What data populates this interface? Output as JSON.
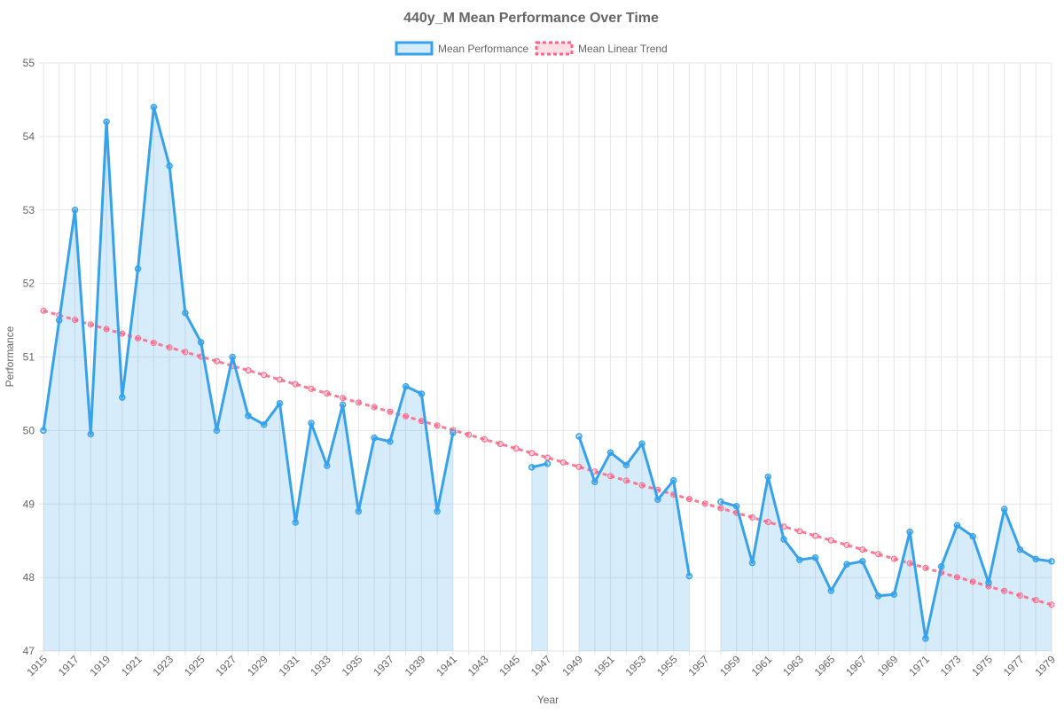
{
  "chart_data": {
    "type": "line",
    "title": "440y_M Mean Performance Over Time",
    "xlabel": "Year",
    "ylabel": "Performance",
    "ylim": [
      47,
      55
    ],
    "xlim": [
      1915,
      1979
    ],
    "y_ticks": [
      47,
      48,
      49,
      50,
      51,
      52,
      53,
      54,
      55
    ],
    "x_tick_labels": [
      "1915",
      "1917",
      "1919",
      "1921",
      "1923",
      "1925",
      "1927",
      "1929",
      "1931",
      "1933",
      "1935",
      "1937",
      "1939",
      "1941",
      "1943",
      "1945",
      "1947",
      "1949",
      "1951",
      "1953",
      "1955",
      "1957",
      "1959",
      "1961",
      "1963",
      "1965",
      "1967",
      "1969",
      "1971",
      "1973",
      "1975",
      "1977",
      "1979"
    ],
    "grid": true,
    "legend_position": "top-center",
    "x": [
      1915,
      1916,
      1917,
      1918,
      1919,
      1920,
      1921,
      1922,
      1923,
      1924,
      1925,
      1926,
      1927,
      1928,
      1929,
      1930,
      1931,
      1932,
      1933,
      1934,
      1935,
      1936,
      1937,
      1938,
      1939,
      1940,
      1941,
      1942,
      1943,
      1944,
      1945,
      1946,
      1947,
      1948,
      1949,
      1950,
      1951,
      1952,
      1953,
      1954,
      1955,
      1956,
      1957,
      1958,
      1959,
      1960,
      1961,
      1962,
      1963,
      1964,
      1965,
      1966,
      1967,
      1968,
      1969,
      1970,
      1971,
      1972,
      1973,
      1974,
      1975,
      1976,
      1977,
      1978,
      1979
    ],
    "series": [
      {
        "name": "Mean Performance",
        "color": "#36a2eb",
        "fill": "rgba(54,162,235,0.2)",
        "values": [
          50.0,
          51.5,
          53.0,
          49.95,
          54.2,
          50.45,
          52.2,
          54.4,
          53.6,
          51.6,
          51.2,
          50.0,
          51.0,
          50.2,
          50.08,
          50.37,
          48.75,
          50.1,
          49.52,
          50.35,
          48.9,
          49.9,
          49.85,
          50.6,
          50.5,
          48.9,
          49.97,
          null,
          null,
          null,
          null,
          49.5,
          49.55,
          null,
          49.92,
          49.3,
          49.7,
          49.53,
          49.82,
          49.06,
          49.32,
          48.02,
          null,
          49.03,
          48.97,
          48.2,
          49.37,
          48.52,
          48.24,
          48.27,
          47.82,
          48.18,
          48.22,
          47.75,
          47.77,
          48.62,
          47.17,
          48.15,
          48.71,
          48.56,
          47.93,
          48.93,
          48.38,
          48.25,
          48.22
        ]
      },
      {
        "name": "Mean Linear Trend",
        "color": "#ff6384",
        "style": "dashed",
        "start": [
          1915,
          51.63
        ],
        "end": [
          1979,
          47.63
        ]
      }
    ]
  }
}
